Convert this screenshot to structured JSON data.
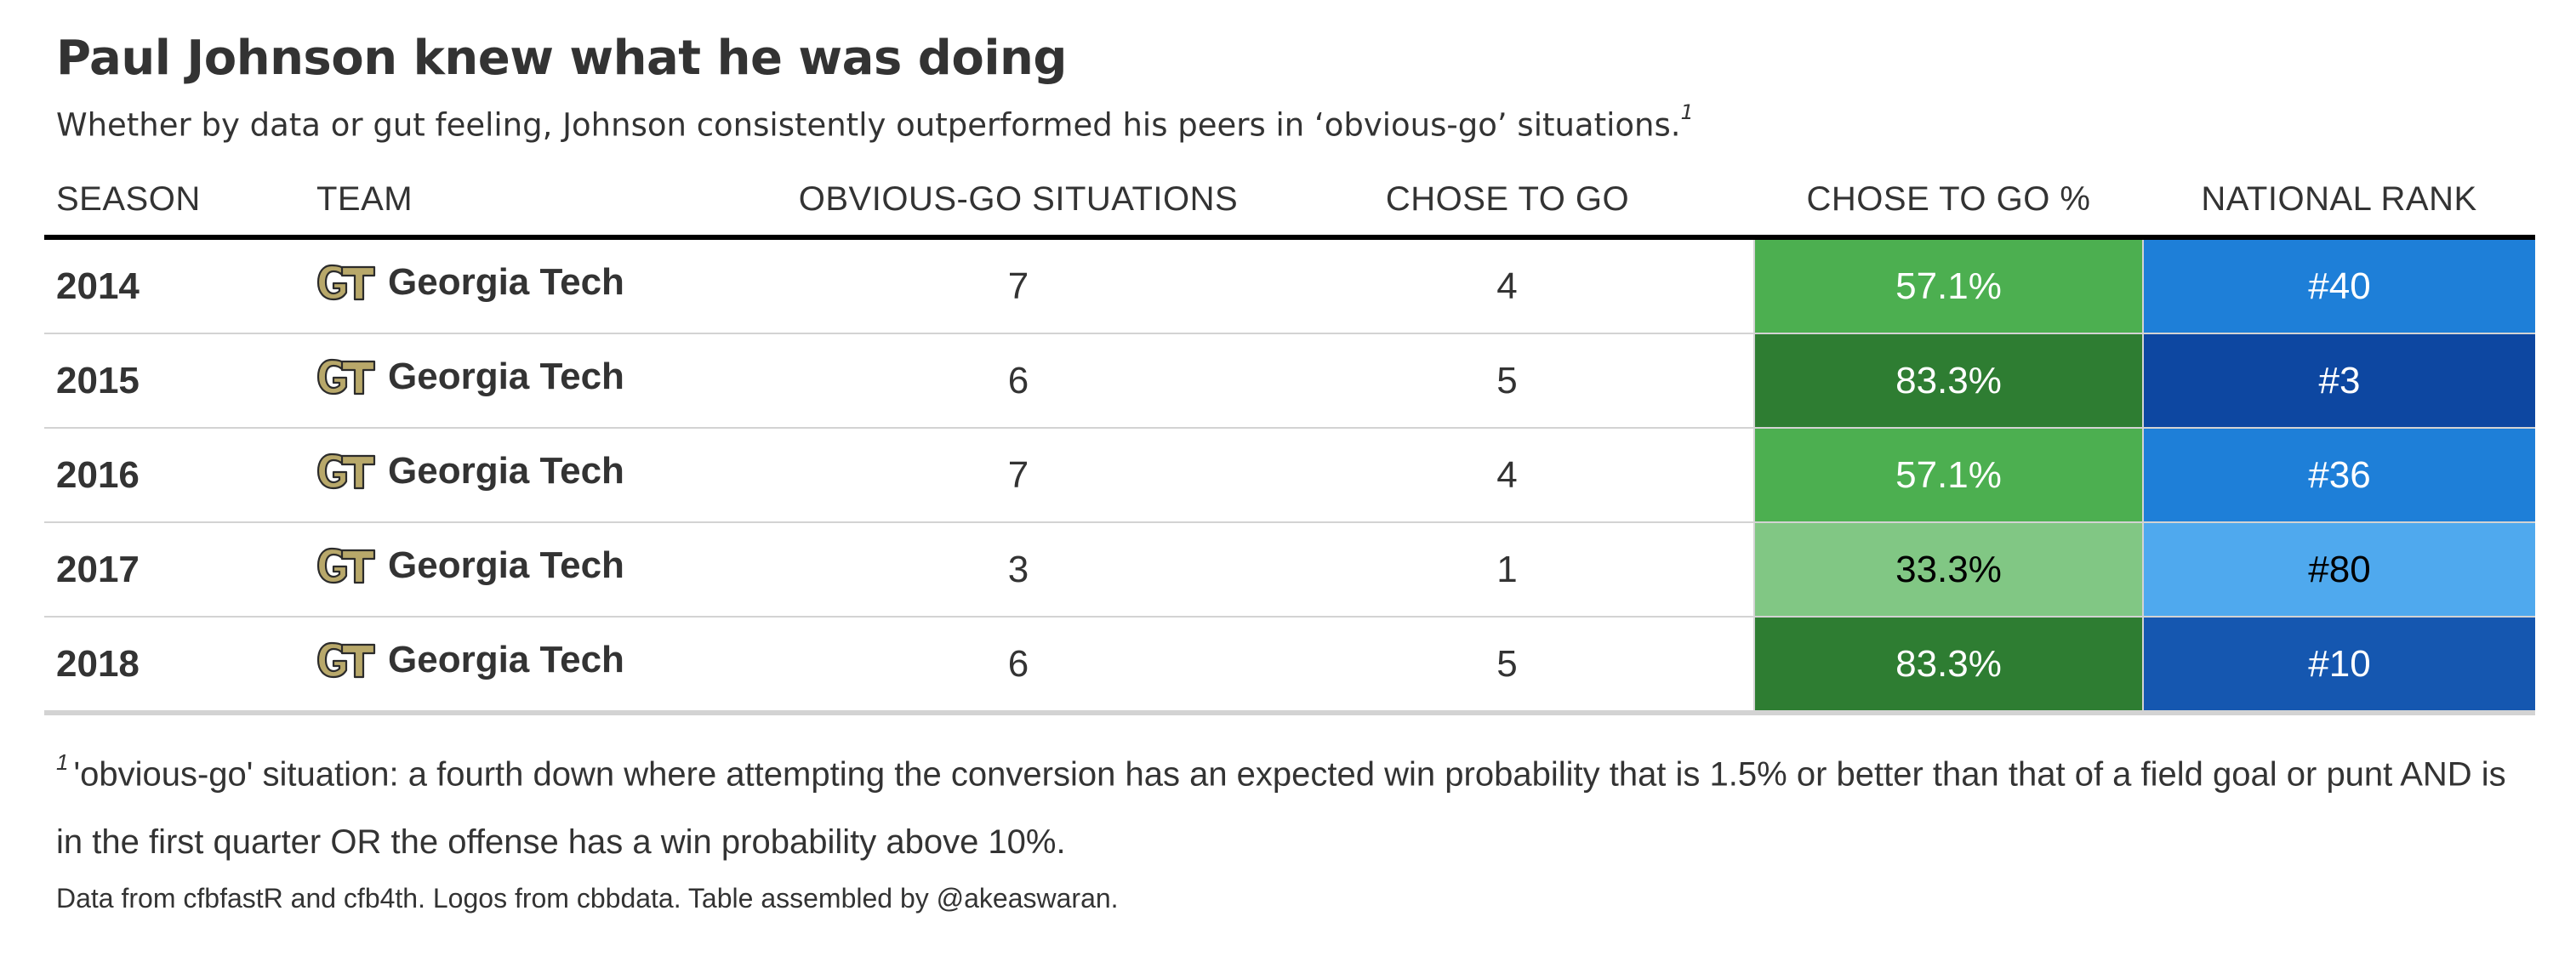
{
  "chart_data": {
    "type": "table",
    "title": "Paul Johnson knew what he was doing",
    "subtitle": "Whether by data or gut feeling, Johnson consistently outperformed his peers in ‘obvious-go’ situations.",
    "subtitle_footnote_mark": "1",
    "columns": [
      "SEASON",
      "TEAM",
      "OBVIOUS-GO SITUATIONS",
      "CHOSE TO GO",
      "CHOSE TO GO %",
      "NATIONAL RANK"
    ],
    "rows": [
      {
        "season": "2014",
        "team": "Georgia Tech",
        "situations": "7",
        "chose_to_go": "4",
        "chose_to_go_pct": "57.1%",
        "national_rank": "#40",
        "pct_value": 57.1,
        "rank_value": 40
      },
      {
        "season": "2015",
        "team": "Georgia Tech",
        "situations": "6",
        "chose_to_go": "5",
        "chose_to_go_pct": "83.3%",
        "national_rank": "#3",
        "pct_value": 83.3,
        "rank_value": 3
      },
      {
        "season": "2016",
        "team": "Georgia Tech",
        "situations": "7",
        "chose_to_go": "4",
        "chose_to_go_pct": "57.1%",
        "national_rank": "#36",
        "pct_value": 57.1,
        "rank_value": 36
      },
      {
        "season": "2017",
        "team": "Georgia Tech",
        "situations": "3",
        "chose_to_go": "1",
        "chose_to_go_pct": "33.3%",
        "national_rank": "#80",
        "pct_value": 33.3,
        "rank_value": 80
      },
      {
        "season": "2018",
        "team": "Georgia Tech",
        "situations": "6",
        "chose_to_go": "5",
        "chose_to_go_pct": "83.3%",
        "national_rank": "#10",
        "pct_value": 83.3,
        "rank_value": 10
      }
    ],
    "footnote_mark": "1",
    "footnote": "'obvious-go' situation: a fourth down where attempting the conversion has an expected win probability that is 1.5% or better than that of a field goal or punt AND is in the first quarter OR the offense has a win probability above 10%.",
    "source": "Data from cfbfastR and cfb4th. Logos from cbbdata. Table assembled by @akeaswaran.",
    "cell_colors": {
      "pct": {
        "57.1%": "#4caf50",
        "83.3%": "#2e7d32",
        "33.3%": "#81c784"
      },
      "rank": {
        "#40": "#1e7fd8",
        "#3": "#0d47a1",
        "#36": "#1e7fd8",
        "#80": "#4fa9ee",
        "#10": "#1557b0"
      }
    },
    "cell_text_colors": {
      "pct": {
        "57.1%": "#ffffff",
        "83.3%": "#ffffff",
        "33.3%": "#000000"
      },
      "rank": {
        "#40": "#ffffff",
        "#3": "#ffffff",
        "#36": "#ffffff",
        "#80": "#000000",
        "#10": "#ffffff"
      }
    },
    "logo_icon": "georgia-tech-gt-logo-icon"
  }
}
